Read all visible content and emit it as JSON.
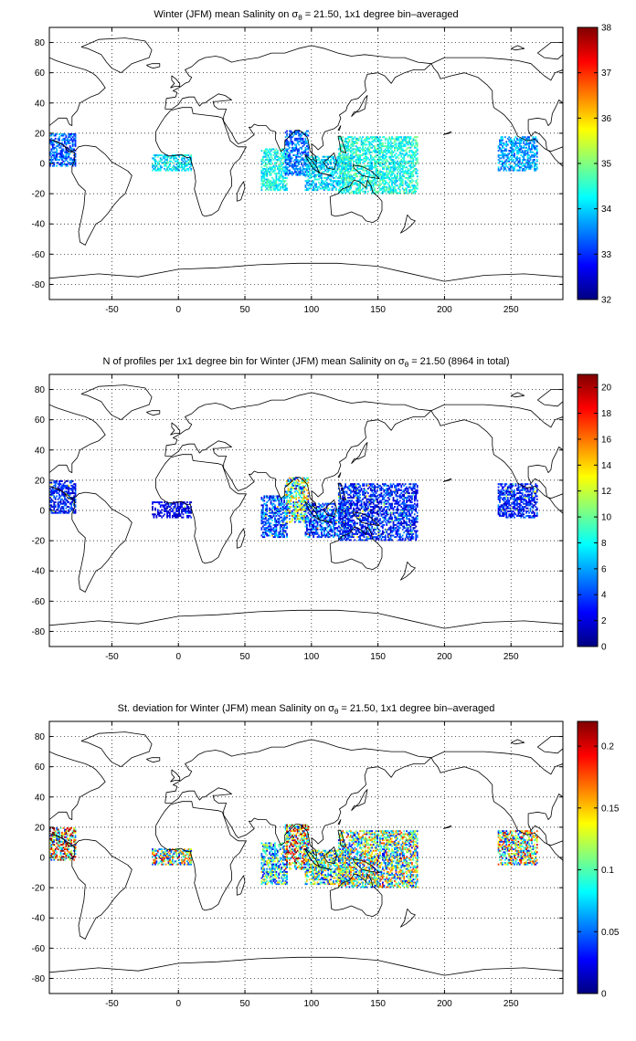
{
  "chart_data": [
    {
      "type": "heatmap",
      "title_prefix": "Winter (JFM) mean Salinity on ",
      "title_symbol": "σ",
      "title_sub": "θ",
      "title_suffix": " = 21.50, 1x1 degree bin–averaged",
      "xlim": [
        -97,
        289
      ],
      "ylim": [
        -90,
        90
      ],
      "xticks": [
        -50,
        0,
        50,
        100,
        150,
        200,
        250
      ],
      "yticks": [
        -80,
        -60,
        -40,
        -20,
        0,
        20,
        40,
        60,
        80
      ],
      "grid": true,
      "colormap": "jet",
      "clim": [
        32,
        38
      ],
      "colorbar_ticks": [
        32,
        33,
        34,
        35,
        36,
        37,
        38
      ],
      "mean_value": 34.3,
      "patches": [
        {
          "lon": [
            -97,
            -77
          ],
          "lat": [
            -2,
            20
          ],
          "value": 33.3
        },
        {
          "lon": [
            -20,
            10
          ],
          "lat": [
            -5,
            6
          ],
          "value": 34.2
        },
        {
          "lon": [
            62,
            82
          ],
          "lat": [
            -18,
            10
          ],
          "value": 34.3
        },
        {
          "lon": [
            80,
            98
          ],
          "lat": [
            -8,
            22
          ],
          "value": 33.4
        },
        {
          "lon": [
            95,
            130
          ],
          "lat": [
            -18,
            5
          ],
          "value": 34.0
        },
        {
          "lon": [
            120,
            180
          ],
          "lat": [
            -20,
            18
          ],
          "value": 34.4
        },
        {
          "lon": [
            240,
            270
          ],
          "lat": [
            -5,
            18
          ],
          "value": 33.7
        }
      ]
    },
    {
      "type": "heatmap",
      "title_prefix": "N of profiles per 1x1 degree bin for Winter (JFM) mean Salinity on ",
      "title_symbol": "σ",
      "title_sub": "θ",
      "title_suffix": " = 21.50 (8964 in total)",
      "total_profiles": 8964,
      "xlim": [
        -97,
        289
      ],
      "ylim": [
        -90,
        90
      ],
      "xticks": [
        -50,
        0,
        50,
        100,
        150,
        200,
        250
      ],
      "yticks": [
        -80,
        -60,
        -40,
        -20,
        0,
        20,
        40,
        60,
        80
      ],
      "grid": true,
      "colormap": "jet",
      "clim": [
        0,
        21
      ],
      "colorbar_ticks": [
        0,
        2,
        4,
        6,
        8,
        10,
        12,
        14,
        16,
        18,
        20
      ],
      "patches": [
        {
          "lon": [
            -97,
            -77
          ],
          "lat": [
            -2,
            20
          ],
          "value": 3
        },
        {
          "lon": [
            -20,
            10
          ],
          "lat": [
            -5,
            6
          ],
          "value": 2
        },
        {
          "lon": [
            62,
            82
          ],
          "lat": [
            -18,
            10
          ],
          "value": 4
        },
        {
          "lon": [
            80,
            98
          ],
          "lat": [
            -8,
            22
          ],
          "value": 9
        },
        {
          "lon": [
            95,
            130
          ],
          "lat": [
            -18,
            5
          ],
          "value": 4
        },
        {
          "lon": [
            120,
            180
          ],
          "lat": [
            -20,
            18
          ],
          "value": 3
        },
        {
          "lon": [
            240,
            270
          ],
          "lat": [
            -5,
            18
          ],
          "value": 3
        }
      ]
    },
    {
      "type": "heatmap",
      "title_prefix": "St. deviation for Winter (JFM) mean Salinity on ",
      "title_symbol": "σ",
      "title_sub": "θ",
      "title_suffix": " = 21.50, 1x1 degree bin–averaged",
      "xlim": [
        -97,
        289
      ],
      "ylim": [
        -90,
        90
      ],
      "xticks": [
        -50,
        0,
        50,
        100,
        150,
        200,
        250
      ],
      "yticks": [
        -80,
        -60,
        -40,
        -20,
        0,
        20,
        40,
        60,
        80
      ],
      "grid": true,
      "colormap": "jet",
      "clim": [
        0,
        0.22
      ],
      "colorbar_ticks": [
        0,
        0.05,
        0.1,
        0.15,
        0.2
      ],
      "patches": [
        {
          "lon": [
            -97,
            -77
          ],
          "lat": [
            -2,
            20
          ],
          "value": 0.15
        },
        {
          "lon": [
            -20,
            10
          ],
          "lat": [
            -5,
            6
          ],
          "value": 0.12
        },
        {
          "lon": [
            62,
            82
          ],
          "lat": [
            -18,
            10
          ],
          "value": 0.09
        },
        {
          "lon": [
            80,
            98
          ],
          "lat": [
            -8,
            22
          ],
          "value": 0.14
        },
        {
          "lon": [
            95,
            130
          ],
          "lat": [
            -18,
            5
          ],
          "value": 0.1
        },
        {
          "lon": [
            120,
            180
          ],
          "lat": [
            -20,
            18
          ],
          "value": 0.11
        },
        {
          "lon": [
            240,
            270
          ],
          "lat": [
            -5,
            18
          ],
          "value": 0.12
        }
      ]
    }
  ],
  "map": {
    "land_color": "#ffffff",
    "coast_color": "#000000",
    "grid_color": "#000000"
  }
}
